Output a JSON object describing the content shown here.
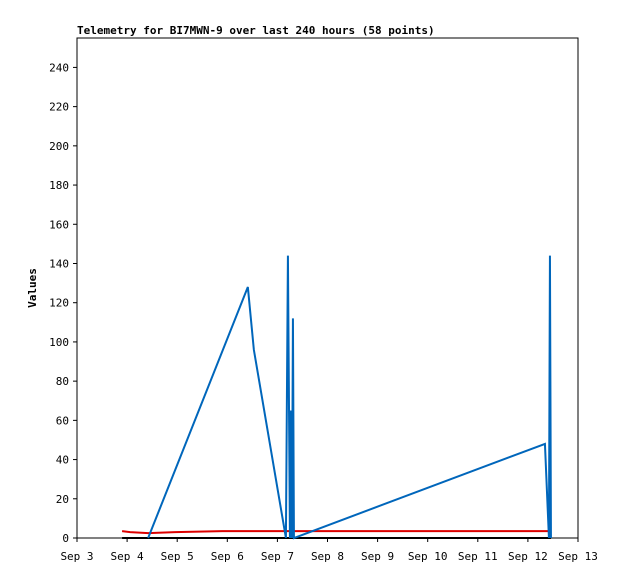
{
  "chart_data": {
    "type": "line",
    "title": "Telemetry for BI7MWN-9 over last 240 hours (58 points)",
    "y_label": "Values",
    "xlim": [
      3,
      13
    ],
    "xticks": [
      {
        "value": 3,
        "label": "Sep 3"
      },
      {
        "value": 4,
        "label": "Sep 4"
      },
      {
        "value": 5,
        "label": "Sep 5"
      },
      {
        "value": 6,
        "label": "Sep 6"
      },
      {
        "value": 7,
        "label": "Sep 7"
      },
      {
        "value": 8,
        "label": "Sep 8"
      },
      {
        "value": 9,
        "label": "Sep 9"
      },
      {
        "value": 10,
        "label": "Sep 10"
      },
      {
        "value": 11,
        "label": "Sep 11"
      },
      {
        "value": 12,
        "label": "Sep 12"
      },
      {
        "value": 13,
        "label": "Sep 13"
      }
    ],
    "ylim": [
      0,
      255
    ],
    "yticks": [
      0,
      20,
      40,
      60,
      80,
      100,
      120,
      140,
      160,
      180,
      200,
      220,
      240
    ],
    "series": [
      {
        "color": "#0066bb",
        "x": [
          4.42,
          6.41,
          6.53,
          7.17,
          7.21,
          7.25,
          7.27,
          7.29,
          7.31,
          7.33,
          12.34,
          12.42,
          12.44,
          12.46
        ],
        "values": [
          0,
          128,
          96,
          0,
          144,
          0,
          65,
          0,
          112,
          0,
          48,
          0,
          144,
          0
        ]
      },
      {
        "color": "#dd0000",
        "x": [
          3.9,
          4.06,
          4.42,
          4.96,
          5.9,
          12.46
        ],
        "values": [
          3.5,
          3,
          2.5,
          3,
          3.5,
          3.5
        ]
      },
      {
        "color": "#000000",
        "x": [
          3.9,
          12.46
        ],
        "values": [
          0,
          0
        ]
      }
    ]
  }
}
